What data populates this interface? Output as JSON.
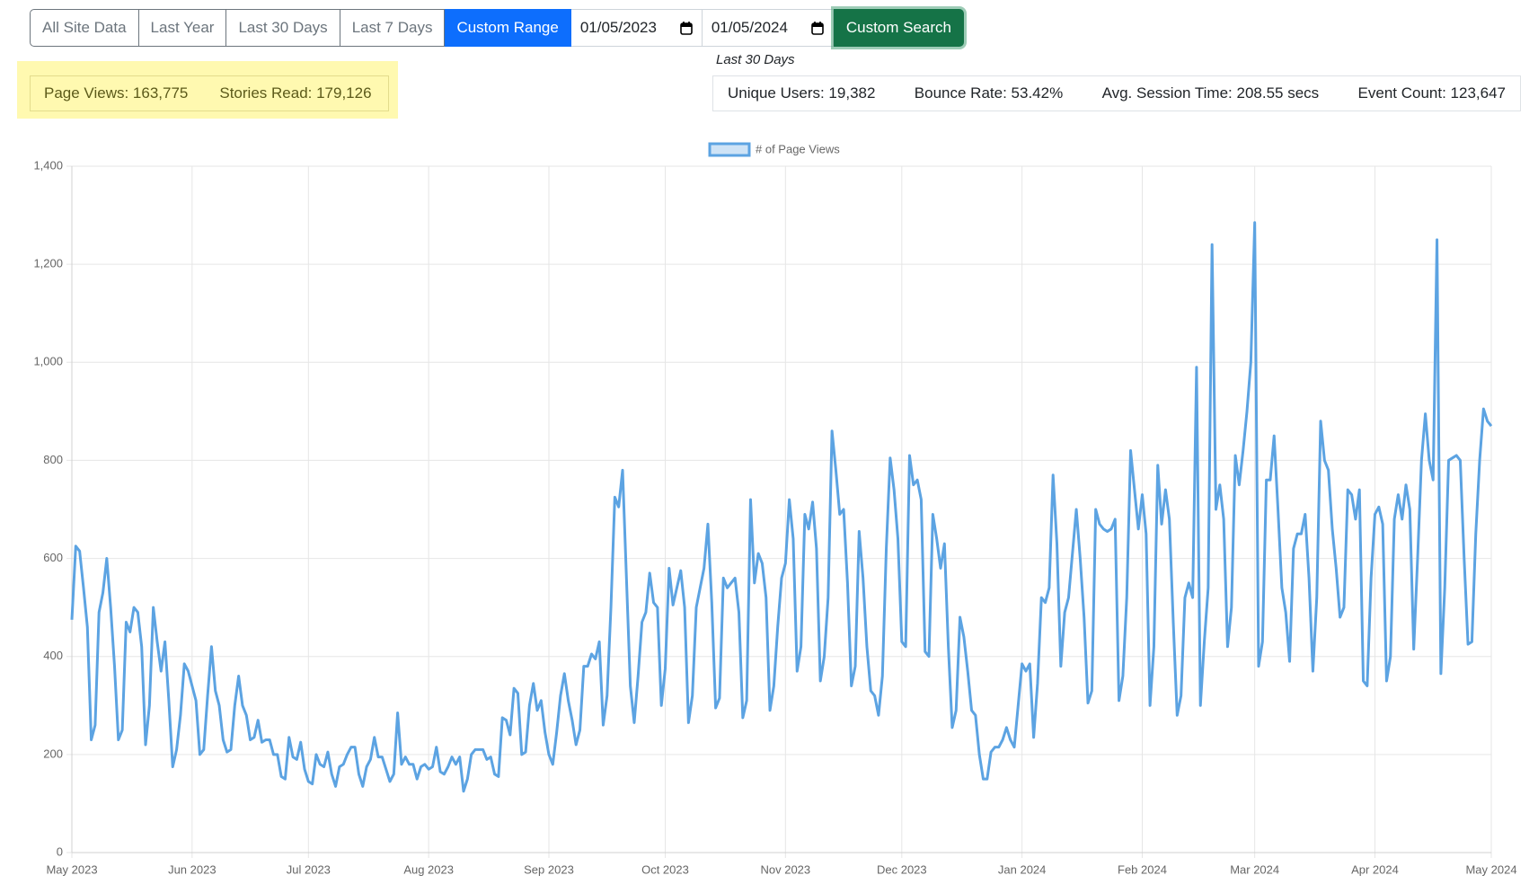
{
  "toolbar": {
    "buttons": [
      {
        "label": "All Site Data",
        "active": false
      },
      {
        "label": "Last Year",
        "active": false
      },
      {
        "label": "Last 30 Days",
        "active": false
      },
      {
        "label": "Last 7 Days",
        "active": false
      },
      {
        "label": "Custom Range",
        "active": true
      }
    ],
    "start_date": "01/05/2023",
    "end_date": "01/05/2024",
    "search_button": "Custom Search"
  },
  "summary": [
    "Page Views: 163,775",
    "Stories Read: 179,126"
  ],
  "stats_caption": "Last 30 Days",
  "stats": [
    "Unique Users: 19,382",
    "Bounce Rate: 53.42%",
    "Avg. Session Time: 208.55 secs",
    "Event Count: 123,647"
  ],
  "chart_data": {
    "type": "line",
    "categories": [
      "May 2023",
      null,
      null,
      null,
      null,
      null,
      null,
      null,
      null,
      null,
      null,
      null,
      null,
      null,
      null,
      null,
      null,
      null,
      null,
      null,
      null,
      null,
      null,
      null,
      null,
      null,
      null,
      null,
      null,
      null,
      null,
      "Jun 2023",
      null,
      null,
      null,
      null,
      null,
      null,
      null,
      null,
      null,
      null,
      null,
      null,
      null,
      null,
      null,
      null,
      null,
      null,
      null,
      null,
      null,
      null,
      null,
      null,
      null,
      null,
      null,
      null,
      null,
      "Jul 2023",
      null,
      null,
      null,
      null,
      null,
      null,
      null,
      null,
      null,
      null,
      null,
      null,
      null,
      null,
      null,
      null,
      null,
      null,
      null,
      null,
      null,
      null,
      null,
      null,
      null,
      null,
      null,
      null,
      null,
      null,
      "Aug 2023",
      null,
      null,
      null,
      null,
      null,
      null,
      null,
      null,
      null,
      null,
      null,
      null,
      null,
      null,
      null,
      null,
      null,
      null,
      null,
      null,
      null,
      null,
      null,
      null,
      null,
      null,
      null,
      null,
      null,
      null,
      "Sep 2023",
      null,
      null,
      null,
      null,
      null,
      null,
      null,
      null,
      null,
      null,
      null,
      null,
      null,
      null,
      null,
      null,
      null,
      null,
      null,
      null,
      null,
      null,
      null,
      null,
      null,
      null,
      null,
      null,
      null,
      "Oct 2023",
      null,
      null,
      null,
      null,
      null,
      null,
      null,
      null,
      null,
      null,
      null,
      null,
      null,
      null,
      null,
      null,
      null,
      null,
      null,
      null,
      null,
      null,
      null,
      null,
      null,
      null,
      null,
      null,
      null,
      null,
      "Nov 2023",
      null,
      null,
      null,
      null,
      null,
      null,
      null,
      null,
      null,
      null,
      null,
      null,
      null,
      null,
      null,
      null,
      null,
      null,
      null,
      null,
      null,
      null,
      null,
      null,
      null,
      null,
      null,
      null,
      null,
      "Dec 2023",
      null,
      null,
      null,
      null,
      null,
      null,
      null,
      null,
      null,
      null,
      null,
      null,
      null,
      null,
      null,
      null,
      null,
      null,
      null,
      null,
      null,
      null,
      null,
      null,
      null,
      null,
      null,
      null,
      null,
      null,
      "Jan 2024",
      null,
      null,
      null,
      null,
      null,
      null,
      null,
      null,
      null,
      null,
      null,
      null,
      null,
      null,
      null,
      null,
      null,
      null,
      null,
      null,
      null,
      null,
      null,
      null,
      null,
      null,
      null,
      null,
      null,
      null,
      "Feb 2024",
      null,
      null,
      null,
      null,
      null,
      null,
      null,
      null,
      null,
      null,
      null,
      null,
      null,
      null,
      null,
      null,
      null,
      null,
      null,
      null,
      null,
      null,
      null,
      null,
      null,
      null,
      null,
      null,
      "Mar 2024",
      null,
      null,
      null,
      null,
      null,
      null,
      null,
      null,
      null,
      null,
      null,
      null,
      null,
      null,
      null,
      null,
      null,
      null,
      null,
      null,
      null,
      null,
      null,
      null,
      null,
      null,
      null,
      null,
      null,
      null,
      "Apr 2024",
      null,
      null,
      null,
      null,
      null,
      null,
      null,
      null,
      null,
      null,
      null,
      null,
      null,
      null,
      null,
      null,
      null,
      null,
      null,
      null,
      null,
      null,
      null,
      null,
      null,
      null,
      null,
      null,
      null,
      "May 2024"
    ],
    "series": [
      {
        "name": "# of Page Views",
        "color": "#5ca3e2",
        "values": [
          475,
          625,
          615,
          540,
          460,
          230,
          260,
          490,
          530,
          600,
          500,
          380,
          230,
          250,
          470,
          450,
          500,
          490,
          420,
          220,
          300,
          500,
          430,
          370,
          430,
          310,
          175,
          210,
          280,
          385,
          370,
          340,
          310,
          200,
          210,
          320,
          420,
          330,
          300,
          230,
          205,
          210,
          300,
          360,
          300,
          280,
          230,
          235,
          270,
          225,
          230,
          230,
          200,
          200,
          155,
          150,
          235,
          195,
          190,
          225,
          170,
          145,
          140,
          200,
          180,
          175,
          205,
          160,
          135,
          175,
          180,
          200,
          215,
          215,
          160,
          135,
          175,
          190,
          235,
          195,
          195,
          170,
          145,
          160,
          285,
          180,
          195,
          180,
          180,
          150,
          175,
          180,
          170,
          175,
          215,
          165,
          160,
          175,
          195,
          180,
          195,
          125,
          150,
          200,
          210,
          210,
          210,
          190,
          195,
          160,
          155,
          275,
          270,
          240,
          335,
          325,
          200,
          205,
          300,
          345,
          290,
          310,
          245,
          200,
          180,
          245,
          320,
          365,
          310,
          270,
          220,
          250,
          380,
          380,
          405,
          395,
          430,
          260,
          320,
          500,
          725,
          705,
          780,
          560,
          340,
          265,
          360,
          470,
          490,
          570,
          510,
          500,
          300,
          375,
          580,
          505,
          540,
          575,
          500,
          265,
          320,
          500,
          540,
          580,
          670,
          510,
          295,
          315,
          560,
          540,
          550,
          560,
          490,
          275,
          310,
          720,
          550,
          610,
          590,
          520,
          290,
          340,
          460,
          560,
          590,
          720,
          640,
          370,
          420,
          690,
          660,
          715,
          620,
          350,
          400,
          520,
          860,
          780,
          690,
          700,
          550,
          340,
          380,
          655,
          560,
          420,
          330,
          320,
          280,
          360,
          620,
          805,
          740,
          640,
          430,
          420,
          810,
          750,
          760,
          720,
          410,
          400,
          690,
          640,
          580,
          630,
          420,
          255,
          290,
          480,
          440,
          370,
          290,
          280,
          200,
          150,
          150,
          205,
          215,
          215,
          230,
          255,
          230,
          215,
          300,
          385,
          370,
          385,
          235,
          345,
          520,
          510,
          540,
          770,
          630,
          380,
          490,
          520,
          610,
          700,
          600,
          480,
          305,
          330,
          700,
          670,
          660,
          655,
          660,
          680,
          310,
          360,
          520,
          820,
          740,
          660,
          730,
          650,
          300,
          420,
          790,
          670,
          740,
          680,
          470,
          280,
          320,
          520,
          550,
          520,
          990,
          300,
          430,
          540,
          1240,
          700,
          750,
          680,
          420,
          500,
          810,
          750,
          820,
          900,
          1000,
          1285,
          380,
          430,
          760,
          760,
          850,
          700,
          540,
          490,
          390,
          620,
          650,
          650,
          690,
          560,
          370,
          520,
          880,
          800,
          780,
          660,
          580,
          480,
          500,
          740,
          730,
          680,
          740,
          350,
          340,
          560,
          690,
          705,
          670,
          350,
          400,
          680,
          730,
          680,
          750,
          700,
          415,
          600,
          800,
          895,
          800,
          760,
          1250,
          365,
          540,
          800,
          805,
          810,
          800,
          600,
          425,
          430,
          650,
          800,
          905,
          880,
          870
        ]
      }
    ],
    "ylim": [
      0,
      1400
    ],
    "yticks": [
      0,
      200,
      400,
      600,
      800,
      {
        "value": 1000,
        "label": "1,000"
      },
      {
        "value": 1200,
        "label": "1,200"
      },
      {
        "value": 1400,
        "label": "1,400"
      }
    ],
    "grid": true,
    "legend": "top"
  }
}
